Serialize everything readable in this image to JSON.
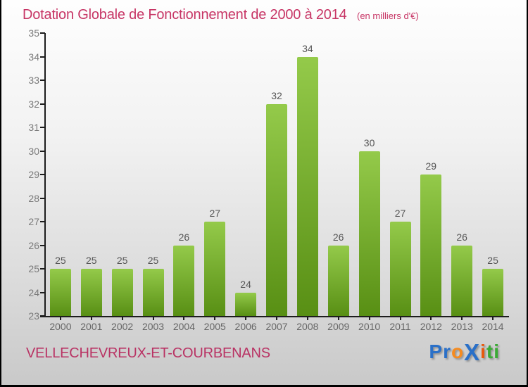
{
  "page": {
    "title": "Dotation Globale de Fonctionnement de 2000 à 2014",
    "subtitle": "(en milliers d'€)",
    "footer_name": "VELLECHEVREUX-ET-COURBENANS",
    "logo_text": "ProXiti",
    "logo_letters": [
      {
        "ch": "P",
        "color": "#2a70c8",
        "big": false
      },
      {
        "ch": "r",
        "color": "#2a70c8",
        "big": false
      },
      {
        "ch": "o",
        "color": "#f68b1f",
        "big": false
      },
      {
        "ch": "X",
        "color": "#2a70c8",
        "big": true
      },
      {
        "ch": "i",
        "color": "#e8590c",
        "big": false
      },
      {
        "ch": "t",
        "color": "#3aaa35",
        "big": false
      },
      {
        "ch": "i",
        "color": "#3aaa35",
        "big": false
      }
    ]
  },
  "colors": {
    "title_pink": "#c73565",
    "footer_pink": "#b93364",
    "bar_gradient_top": "#94ca4a",
    "bar_gradient_bottom": "#588f14",
    "axis": "#1d1d1d",
    "y_tick_label": "#7a7a7a",
    "x_tick_label": "#666666",
    "bar_value_label": "#555555",
    "background_top": "#fefefe",
    "background_bottom": "#c9c9c9"
  },
  "chart_data": {
    "type": "bar",
    "title": "Dotation Globale de Fonctionnement de 2000 à 2014",
    "subtitle": "(en milliers d'€)",
    "xlabel": "",
    "ylabel": "",
    "categories": [
      "2000",
      "2001",
      "2002",
      "2003",
      "2004",
      "2005",
      "2006",
      "2007",
      "2008",
      "2009",
      "2010",
      "2011",
      "2012",
      "2013",
      "2014"
    ],
    "values": [
      25,
      25,
      25,
      25,
      26,
      27,
      24,
      32,
      34,
      26,
      30,
      27,
      29,
      26,
      25
    ],
    "ylim": [
      23,
      35
    ],
    "ytick_step": 1,
    "grid": false,
    "legend": false,
    "bar_value_labels_shown": true
  }
}
